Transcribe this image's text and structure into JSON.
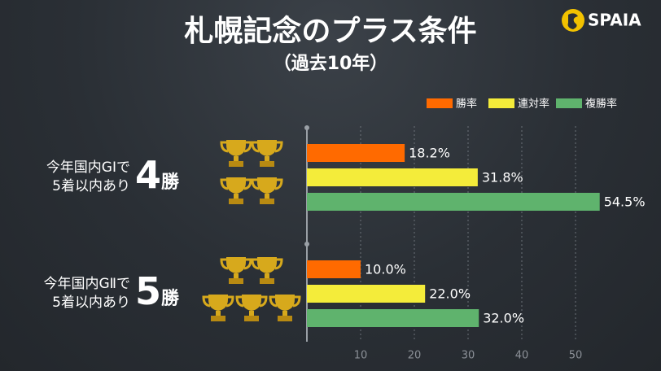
{
  "header": {
    "title": "札幌記念のプラス条件",
    "subtitle": "（過去10年）",
    "logo": "SPAIA"
  },
  "chart_data": {
    "type": "bar",
    "orientation": "horizontal",
    "categories": [
      "今年国内GⅠで\n5着以内あり",
      "今年国内GⅡで\n5着以内あり"
    ],
    "badges": [
      {
        "number": "4",
        "unit": "勝"
      },
      {
        "number": "5",
        "unit": "勝"
      }
    ],
    "series": [
      {
        "name": "勝率",
        "color": "#ff6a00",
        "values": [
          18.2,
          10.0
        ],
        "value_labels": [
          "18.2%",
          "10.0%"
        ]
      },
      {
        "name": "連対率",
        "color": "#f4ec3a",
        "values": [
          31.8,
          22.0
        ],
        "value_labels": [
          "31.8%",
          "22.0%"
        ]
      },
      {
        "name": "複勝率",
        "color": "#5fb36d",
        "values": [
          54.5,
          32.0
        ],
        "value_labels": [
          "54.5%",
          "32.0%"
        ]
      }
    ],
    "xlim": [
      0,
      55
    ],
    "xticks": [
      10,
      20,
      30,
      40,
      50
    ],
    "grid": true,
    "legend": "top-right"
  }
}
